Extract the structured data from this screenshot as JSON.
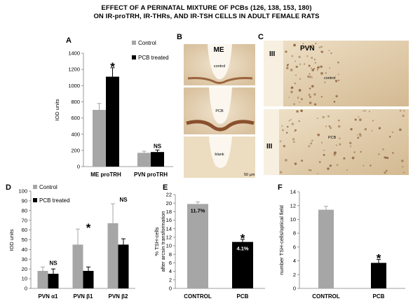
{
  "title": {
    "line1": "EFFECT OF A PERINATAL MIXTURE OF PCBs (126, 138, 153, 180)",
    "line2": "ON IR-proTRH, IR-THRs, AND IR-TSH CELLS IN ADULT FEMALE RATS"
  },
  "colors": {
    "control": "#a6a6a6",
    "treated": "#000000",
    "axis": "#7f7f7f"
  },
  "panels": {
    "A": {
      "letter": "A"
    },
    "B": {
      "letter": "B",
      "header": "ME",
      "labels": [
        "control",
        "PCB",
        "blank"
      ],
      "scale": "50 μm"
    },
    "C": {
      "letter": "C",
      "header": "PVN",
      "ventricle": "III",
      "labels": [
        "control",
        "PCB"
      ]
    },
    "D": {
      "letter": "D"
    },
    "E": {
      "letter": "E"
    },
    "F": {
      "letter": "F"
    }
  },
  "chart_data": [
    {
      "id": "A",
      "type": "bar",
      "categories": [
        "ME proTRH",
        "PVN proTRH"
      ],
      "series": [
        {
          "name": "Control",
          "values": [
            700,
            170
          ],
          "errors": [
            80,
            20
          ]
        },
        {
          "name": "PCB treated",
          "values": [
            1110,
            180
          ],
          "errors": [
            110,
            25
          ]
        }
      ],
      "ylabel": "IOD units",
      "ylim": [
        0,
        1400
      ],
      "yticks": [
        0,
        200,
        400,
        600,
        800,
        1000,
        1200,
        1400
      ],
      "annotations": [
        {
          "category": 0,
          "text": "*"
        },
        {
          "category": 1,
          "text": "NS"
        }
      ],
      "legend": "top-right"
    },
    {
      "id": "D",
      "type": "bar",
      "categories": [
        "PVN α1",
        "PVN β1",
        "PVN β2"
      ],
      "series": [
        {
          "name": "Control",
          "values": [
            18,
            45,
            67
          ],
          "errors": [
            4,
            16,
            20
          ]
        },
        {
          "name": "PCB treated",
          "values": [
            15,
            18,
            45
          ],
          "errors": [
            5,
            4,
            6
          ]
        }
      ],
      "ylabel": "IOD units",
      "ylim": [
        0,
        100
      ],
      "yticks": [
        0,
        10,
        20,
        30,
        40,
        50,
        60,
        70,
        80,
        90,
        100
      ],
      "annotations": [
        {
          "category": 0,
          "text": "NS"
        },
        {
          "category": 1,
          "text": "*"
        },
        {
          "category": 2,
          "text": "NS"
        }
      ],
      "legend": "top-left"
    },
    {
      "id": "E",
      "type": "bar",
      "categories": [
        "CONTROL",
        "PCB"
      ],
      "values": [
        19.8,
        10.9
      ],
      "errors": [
        0.5,
        0.6
      ],
      "bar_labels": [
        "11.7%",
        "4.1%"
      ],
      "ylabel": "% TSH-cells after arcsin transformation",
      "ylim": [
        0,
        22
      ],
      "yticks": [
        0,
        2,
        4,
        6,
        8,
        10,
        12,
        14,
        16,
        18,
        20,
        22
      ],
      "annotations": [
        {
          "category": 1,
          "text": "*"
        }
      ]
    },
    {
      "id": "F",
      "type": "bar",
      "categories": [
        "CONTROL",
        "PCB"
      ],
      "values": [
        11.4,
        3.7
      ],
      "errors": [
        0.5,
        0.5
      ],
      "ylabel": "number TSH-cells/optical field",
      "ylim": [
        0,
        14
      ],
      "yticks": [
        0,
        2,
        4,
        6,
        8,
        10,
        12,
        14
      ],
      "annotations": [
        {
          "category": 1,
          "text": "*"
        }
      ]
    }
  ]
}
